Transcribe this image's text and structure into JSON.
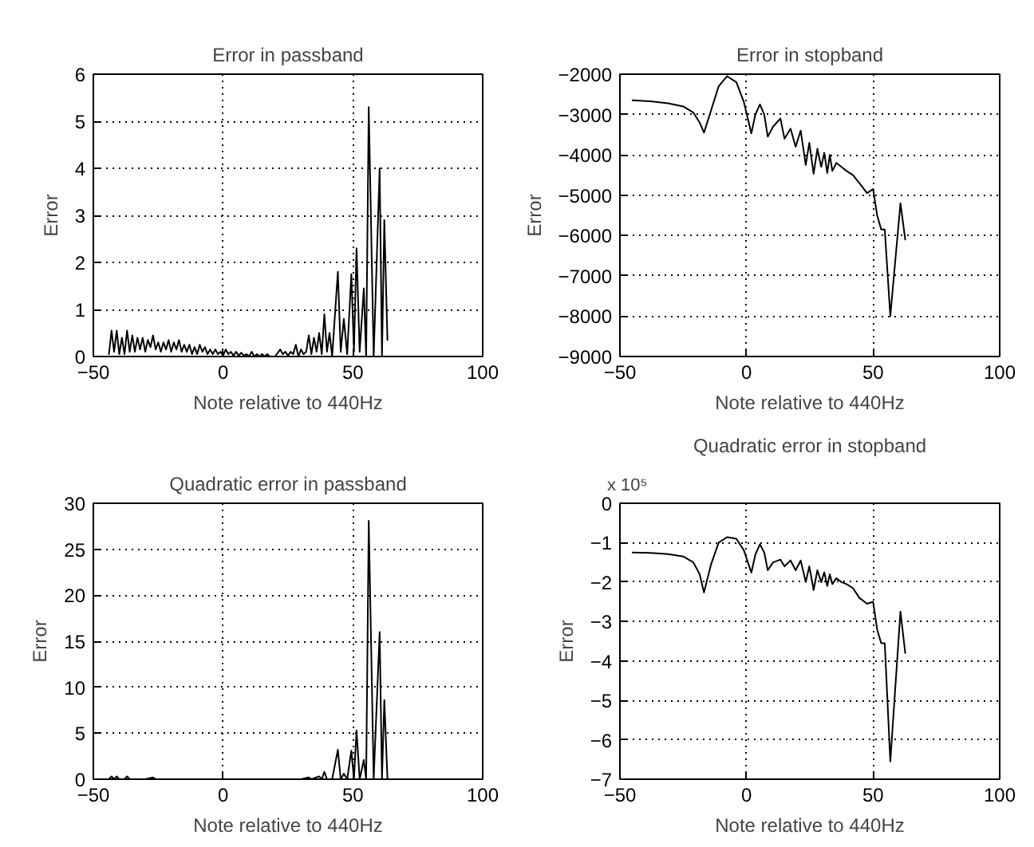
{
  "chart_data": [
    {
      "type": "line",
      "title": "Error in passband",
      "xlabel": "Note relative to 440Hz",
      "ylabel": "Error",
      "xlim": [
        -50,
        100
      ],
      "ylim": [
        0,
        6
      ],
      "xticks": [
        -50,
        0,
        50,
        100
      ],
      "yticks": [
        0,
        1,
        2,
        3,
        4,
        5,
        6
      ],
      "grid": true,
      "series": [
        {
          "color": "#000000",
          "x": [
            -44,
            -43,
            -42,
            -41,
            -40,
            -39,
            -38,
            -37,
            -36,
            -35,
            -34,
            -33,
            -32,
            -31,
            -30,
            -29,
            -28,
            -27,
            -26,
            -25,
            -24,
            -23,
            -22,
            -21,
            -20,
            -19,
            -18,
            -17,
            -16,
            -15,
            -14,
            -13,
            -12,
            -11,
            -10,
            -9,
            -8,
            -7,
            -6,
            -5,
            -4,
            -3,
            -2,
            -1,
            0,
            1,
            2,
            3,
            4,
            5,
            6,
            7,
            8,
            9,
            10,
            11,
            12,
            13,
            14,
            15,
            16,
            17,
            18,
            20,
            22,
            23,
            24,
            25,
            26,
            27,
            28,
            29,
            30,
            31,
            32,
            33,
            34,
            35,
            36,
            37,
            38,
            39,
            40,
            41,
            42,
            44.2,
            45.3,
            46.5,
            47.8,
            49.4,
            50.4,
            51.4,
            52.6,
            54.2,
            55.1,
            56.1,
            58,
            60.3,
            61.2,
            62.1,
            63.3
          ],
          "values": [
            0.05,
            0.55,
            0.1,
            0.55,
            0.05,
            0.4,
            0.05,
            0.55,
            0.1,
            0.45,
            0.1,
            0.4,
            0.15,
            0.4,
            0.1,
            0.35,
            0.2,
            0.45,
            0.15,
            0.3,
            0.1,
            0.3,
            0.15,
            0.35,
            0.1,
            0.3,
            0.15,
            0.35,
            0.1,
            0.25,
            0.1,
            0.25,
            0.05,
            0.2,
            0.05,
            0.25,
            0.1,
            0.2,
            0.05,
            0.15,
            0.05,
            0.15,
            0.05,
            0.1,
            0.02,
            0.15,
            0.05,
            0.1,
            0.02,
            0.1,
            0.02,
            0.08,
            0.02,
            0.05,
            0,
            0.1,
            0,
            0.05,
            0,
            0.05,
            0,
            0.05,
            0,
            0,
            0.15,
            0.05,
            0.1,
            0.02,
            0.1,
            0.05,
            0.25,
            0,
            0.15,
            0.05,
            0.1,
            0.45,
            0.05,
            0.4,
            0.1,
            0.5,
            0.05,
            0.9,
            0.1,
            0.5,
            0,
            1.8,
            0.1,
            0.8,
            0.05,
            1.75,
            0.1,
            2.3,
            0.1,
            1.45,
            0,
            5.3,
            0,
            4.0,
            0,
            2.9,
            0.35
          ]
        }
      ]
    },
    {
      "type": "line",
      "title": "Error in stopband",
      "xlabel": "Note relative to 440Hz",
      "ylabel": "Error",
      "xlim": [
        -50,
        100
      ],
      "ylim": [
        -9000,
        -2000
      ],
      "xticks": [
        -50,
        0,
        50,
        100
      ],
      "yticks": [
        -9000,
        -8000,
        -7000,
        -6000,
        -5000,
        -4000,
        -3000,
        -2000
      ],
      "grid": true,
      "series": [
        {
          "color": "#000000",
          "x": [
            -45,
            -38,
            -31,
            -25,
            -21,
            -18.5,
            -16.8,
            -14,
            -11,
            -7.7,
            -4,
            -1,
            1.9,
            3.5,
            5.3,
            7,
            8.4,
            10.5,
            13.4,
            15,
            17.4,
            19.4,
            21.4,
            23.4,
            24.8,
            26.5,
            28,
            29.5,
            30.7,
            31.9,
            32.9,
            33.9,
            35.5,
            37.5,
            39.5,
            42,
            44.6,
            47.6,
            50,
            51.6,
            53.2,
            54.6,
            56.8,
            60.8,
            62.7
          ],
          "values": [
            -2650,
            -2670,
            -2720,
            -2800,
            -2950,
            -3200,
            -3450,
            -2900,
            -2300,
            -2050,
            -2200,
            -2700,
            -3470,
            -3000,
            -2750,
            -3000,
            -3550,
            -3300,
            -3100,
            -3600,
            -3350,
            -3800,
            -3400,
            -4250,
            -3700,
            -4470,
            -3850,
            -4300,
            -3950,
            -4450,
            -4000,
            -4400,
            -4200,
            -4300,
            -4400,
            -4500,
            -4700,
            -4950,
            -4850,
            -5500,
            -5850,
            -5850,
            -8000,
            -5200,
            -6100
          ]
        }
      ]
    },
    {
      "type": "line",
      "title": "Quadratic error in passband",
      "xlabel": "Note relative to 440Hz",
      "ylabel": "Error",
      "xlim": [
        -50,
        100
      ],
      "ylim": [
        0,
        30
      ],
      "xticks": [
        -50,
        0,
        50,
        100
      ],
      "yticks": [
        0,
        5,
        10,
        15,
        20,
        25,
        30
      ],
      "grid": true,
      "series": [
        {
          "color": "#000000",
          "x": [
            -44,
            -43,
            -42,
            -41,
            -40,
            -38,
            -37,
            -36,
            -30,
            -27,
            -26,
            -20,
            0,
            20,
            30,
            33,
            34,
            37,
            38,
            39,
            40,
            42,
            44.2,
            45.3,
            46.5,
            47.8,
            49.4,
            50.4,
            51.4,
            52.6,
            54.2,
            55.1,
            56.1,
            58,
            60.3,
            61.2,
            62.1,
            63.3
          ],
          "values": [
            0,
            0.3,
            0,
            0.3,
            0,
            0,
            0.3,
            0,
            0,
            0.2,
            0,
            0,
            0,
            0,
            0,
            0.2,
            0,
            0.3,
            0,
            0.8,
            0,
            0,
            3.2,
            0,
            0.6,
            0,
            3.1,
            0,
            5.3,
            0,
            2.1,
            0,
            28.1,
            0,
            16.0,
            0,
            8.6,
            0.1
          ]
        }
      ]
    },
    {
      "type": "line",
      "title": "Quadratic error in stopband",
      "xlabel": "Note relative to 440Hz",
      "ylabel": "Error",
      "annotations": [
        "x 10⁵"
      ],
      "xlim": [
        -50,
        100
      ],
      "ylim": [
        -7,
        0
      ],
      "xticks": [
        -50,
        0,
        50,
        100
      ],
      "yticks": [
        -7,
        -6,
        -5,
        -4,
        -3,
        -2,
        -1,
        0
      ],
      "grid": true,
      "series": [
        {
          "color": "#000000",
          "x": [
            -45,
            -38,
            -31,
            -25,
            -21,
            -18.5,
            -16.8,
            -14,
            -11,
            -7.7,
            -4,
            -1,
            1.9,
            3.5,
            5.3,
            7,
            8.4,
            10.5,
            13.4,
            15,
            17.4,
            19.4,
            21.4,
            23.4,
            24.8,
            26.5,
            28,
            29.5,
            30.7,
            31.9,
            32.9,
            33.9,
            35.5,
            37.5,
            39.5,
            42,
            44.6,
            47.6,
            50,
            51.6,
            53.2,
            54.6,
            56.8,
            60.8,
            62.7
          ],
          "values": [
            -1.25,
            -1.26,
            -1.29,
            -1.35,
            -1.5,
            -1.8,
            -2.26,
            -1.55,
            -1.0,
            -0.86,
            -0.9,
            -1.2,
            -1.76,
            -1.3,
            -1.04,
            -1.25,
            -1.7,
            -1.5,
            -1.43,
            -1.6,
            -1.45,
            -1.7,
            -1.45,
            -2.0,
            -1.6,
            -2.2,
            -1.7,
            -2.0,
            -1.75,
            -2.1,
            -1.8,
            -2.05,
            -1.9,
            -2.0,
            -2.05,
            -2.15,
            -2.4,
            -2.55,
            -2.5,
            -3.2,
            -3.55,
            -3.55,
            -6.55,
            -2.75,
            -3.8
          ]
        }
      ]
    }
  ]
}
